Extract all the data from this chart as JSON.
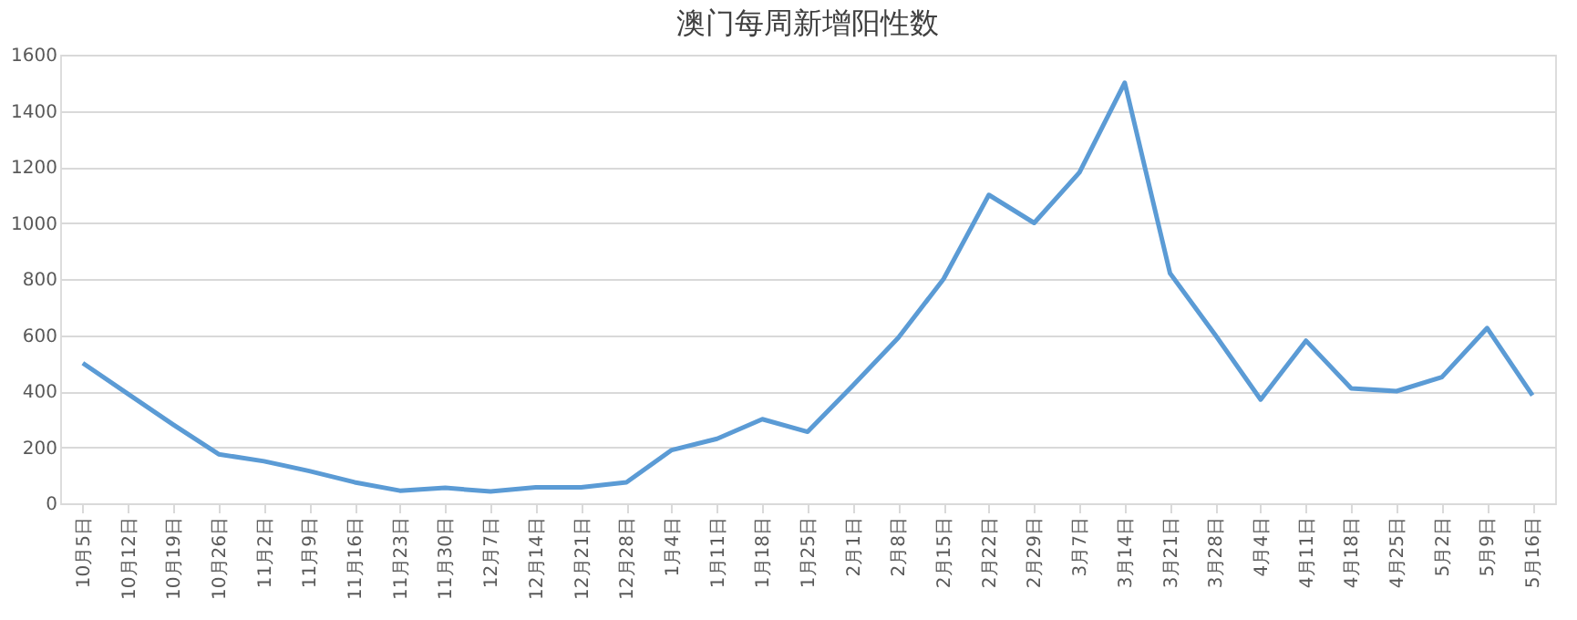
{
  "chart_data": {
    "type": "line",
    "title": "澳门每周新增阳性数",
    "categories": [
      "10月5日",
      "10月12日",
      "10月19日",
      "10月26日",
      "11月2日",
      "11月9日",
      "11月16日",
      "11月23日",
      "11月30日",
      "12月7日",
      "12月14日",
      "12月21日",
      "12月28日",
      "1月4日",
      "1月11日",
      "1月18日",
      "1月25日",
      "2月1日",
      "2月8日",
      "2月15日",
      "2月22日",
      "2月29日",
      "3月7日",
      "3月14日",
      "3月21日",
      "3月28日",
      "4月4日",
      "4月11日",
      "4月18日",
      "4月25日",
      "5月2日",
      "5月9日",
      "5月16日"
    ],
    "series": [
      {
        "color": "#5b9bd5",
        "values": [
          500,
          390,
          280,
          175,
          150,
          115,
          75,
          45,
          55,
          42,
          57,
          57,
          75,
          190,
          230,
          300,
          255,
          420,
          590,
          800,
          1100,
          1000,
          1180,
          1500,
          820,
          600,
          370,
          580,
          410,
          400,
          450,
          625,
          385
        ]
      }
    ],
    "ylim": [
      0,
      1600
    ],
    "yticks": [
      0,
      200,
      400,
      600,
      800,
      1000,
      1200,
      1400,
      1600
    ],
    "grid": "y",
    "marker": "none",
    "line_style": "solid"
  }
}
